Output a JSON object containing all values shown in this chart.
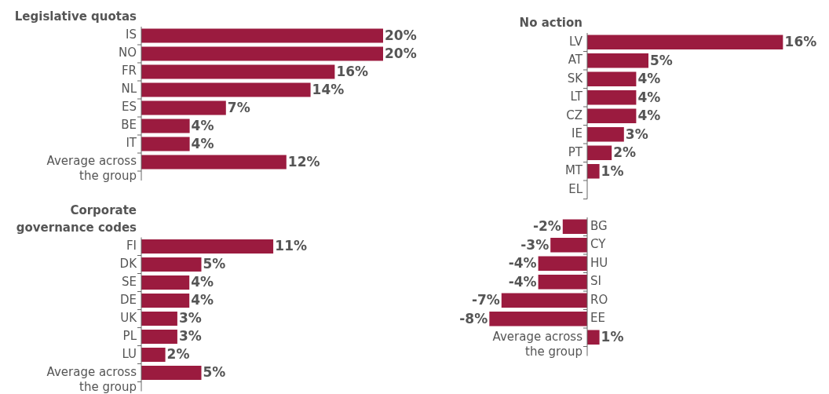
{
  "chart_data": [
    {
      "type": "bar",
      "orientation": "horizontal",
      "title": "Legislative quotas",
      "color": "#9b1b3f",
      "categories": [
        "IS",
        "NO",
        "FR",
        "NL",
        "ES",
        "BE",
        "IT",
        "Average across the group"
      ],
      "values": [
        20,
        20,
        16,
        14,
        7,
        4,
        4,
        12
      ],
      "value_labels": [
        "20%",
        "20%",
        "16%",
        "14%",
        "7%",
        "4%",
        "4%",
        "12%"
      ]
    },
    {
      "type": "bar",
      "orientation": "horizontal",
      "title": "Corporate governance codes",
      "color": "#9b1b3f",
      "categories": [
        "FI",
        "DK",
        "SE",
        "DE",
        "UK",
        "PL",
        "LU",
        "Average across the group"
      ],
      "values": [
        11,
        5,
        4,
        4,
        3,
        3,
        2,
        5
      ],
      "value_labels": [
        "11%",
        "5%",
        "4%",
        "4%",
        "3%",
        "3%",
        "2%",
        "5%"
      ]
    },
    {
      "type": "bar",
      "orientation": "horizontal",
      "title": "No action",
      "color": "#9b1b3f",
      "categories": [
        "LV",
        "AT",
        "SK",
        "LT",
        "CZ",
        "IE",
        "PT",
        "MT",
        "EL",
        null,
        "BG",
        "CY",
        "HU",
        "SI",
        "RO",
        "EE",
        "Average across the group"
      ],
      "values": [
        16,
        5,
        4,
        4,
        4,
        3,
        2,
        1,
        null,
        null,
        -2,
        -3,
        -4,
        -4,
        -7,
        -8,
        1
      ],
      "value_labels": [
        "16%",
        "5%",
        "4%",
        "4%",
        "4%",
        "3%",
        "2%",
        "1%",
        null,
        null,
        "-2%",
        "-3%",
        "-4%",
        "-4%",
        "-7%",
        "-8%",
        "1%"
      ]
    }
  ]
}
